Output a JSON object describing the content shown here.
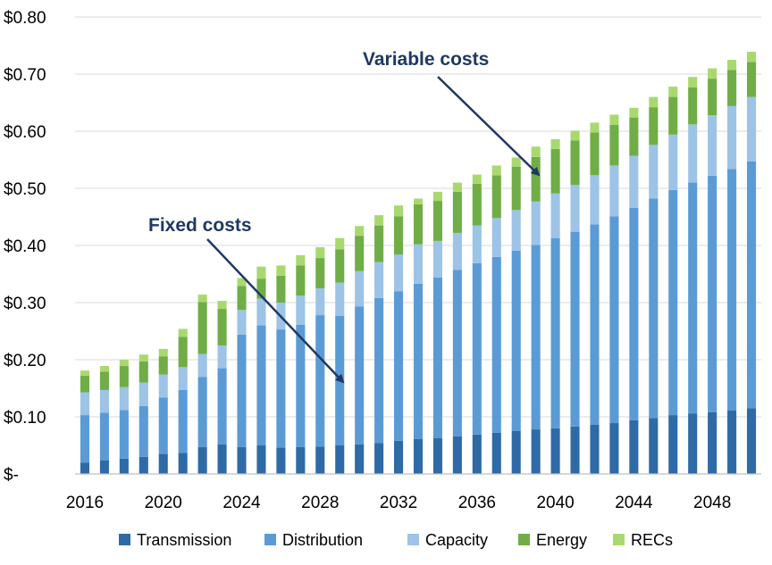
{
  "chart_data": {
    "type": "bar",
    "stacked": true,
    "title": "",
    "xlabel": "",
    "ylabel": "",
    "ylim": [
      0,
      0.8
    ],
    "yticks": [
      "$-",
      "$0.10",
      "$0.20",
      "$0.30",
      "$0.40",
      "$0.50",
      "$0.60",
      "$0.70",
      "$0.80"
    ],
    "xtick_labels": [
      "2016",
      "2020",
      "2024",
      "2028",
      "2032",
      "2036",
      "2040",
      "2044",
      "2048"
    ],
    "gridlines": true,
    "legend_position": "bottom",
    "categories": [
      2016,
      2017,
      2018,
      2019,
      2020,
      2021,
      2022,
      2023,
      2024,
      2025,
      2026,
      2027,
      2028,
      2029,
      2030,
      2031,
      2032,
      2033,
      2034,
      2035,
      2036,
      2037,
      2038,
      2039,
      2040,
      2041,
      2042,
      2043,
      2044,
      2045,
      2046,
      2047,
      2048,
      2049,
      2050
    ],
    "series": [
      {
        "name": "Transmission",
        "color": "#2e6aa6",
        "values": [
          0.02,
          0.024,
          0.027,
          0.03,
          0.035,
          0.037,
          0.047,
          0.052,
          0.047,
          0.05,
          0.046,
          0.047,
          0.048,
          0.05,
          0.052,
          0.054,
          0.058,
          0.061,
          0.063,
          0.066,
          0.069,
          0.072,
          0.075,
          0.078,
          0.08,
          0.083,
          0.086,
          0.089,
          0.094,
          0.098,
          0.103,
          0.106,
          0.108,
          0.111,
          0.115
        ]
      },
      {
        "name": "Distribution",
        "color": "#5b9bd5",
        "values": [
          0.083,
          0.083,
          0.085,
          0.089,
          0.099,
          0.11,
          0.123,
          0.133,
          0.197,
          0.21,
          0.207,
          0.214,
          0.23,
          0.227,
          0.241,
          0.254,
          0.262,
          0.272,
          0.281,
          0.291,
          0.3,
          0.308,
          0.316,
          0.323,
          0.333,
          0.341,
          0.351,
          0.362,
          0.372,
          0.384,
          0.394,
          0.404,
          0.414,
          0.423,
          0.432
        ]
      },
      {
        "name": "Capacity",
        "color": "#9dc3e6",
        "values": [
          0.04,
          0.04,
          0.04,
          0.041,
          0.04,
          0.04,
          0.04,
          0.04,
          0.043,
          0.047,
          0.047,
          0.051,
          0.047,
          0.058,
          0.062,
          0.063,
          0.064,
          0.069,
          0.064,
          0.065,
          0.066,
          0.068,
          0.071,
          0.076,
          0.078,
          0.082,
          0.086,
          0.089,
          0.091,
          0.094,
          0.097,
          0.102,
          0.106,
          0.11,
          0.113
        ]
      },
      {
        "name": "Energy",
        "color": "#70ad47",
        "values": [
          0.029,
          0.032,
          0.037,
          0.037,
          0.032,
          0.053,
          0.091,
          0.064,
          0.042,
          0.035,
          0.047,
          0.053,
          0.053,
          0.058,
          0.062,
          0.064,
          0.067,
          0.07,
          0.07,
          0.072,
          0.073,
          0.075,
          0.076,
          0.078,
          0.078,
          0.078,
          0.075,
          0.071,
          0.067,
          0.066,
          0.066,
          0.065,
          0.064,
          0.063,
          0.061
        ]
      },
      {
        "name": "RECs",
        "color": "#a9d96e",
        "values": [
          0.009,
          0.01,
          0.011,
          0.012,
          0.013,
          0.014,
          0.013,
          0.014,
          0.014,
          0.021,
          0.018,
          0.018,
          0.019,
          0.02,
          0.017,
          0.018,
          0.019,
          0.01,
          0.016,
          0.016,
          0.016,
          0.017,
          0.016,
          0.018,
          0.017,
          0.017,
          0.017,
          0.018,
          0.017,
          0.018,
          0.018,
          0.018,
          0.018,
          0.018,
          0.018
        ]
      }
    ],
    "annotations": [
      {
        "text": "Variable costs",
        "arrow_to_category": 2039
      },
      {
        "text": "Fixed costs",
        "arrow_to_category": 2029
      }
    ]
  }
}
